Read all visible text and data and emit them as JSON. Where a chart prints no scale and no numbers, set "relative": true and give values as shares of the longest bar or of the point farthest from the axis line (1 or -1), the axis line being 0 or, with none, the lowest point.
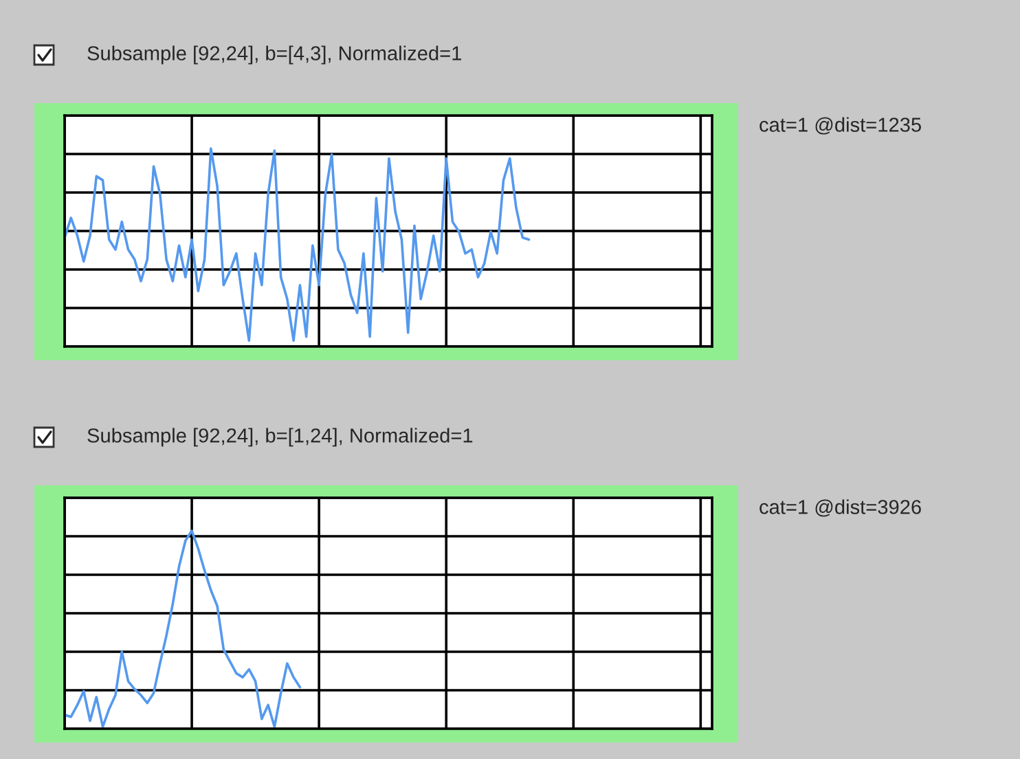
{
  "chart_data": [
    {
      "type": "line",
      "title": "Subsample [92,24], b=[4,3], Normalized=1",
      "annotations": [
        "cat=1 @dist=1235"
      ],
      "relative": true,
      "grid": true,
      "marker": "none",
      "line_style": "solid",
      "categories": [
        null,
        null,
        null,
        null,
        null,
        null,
        null,
        null,
        null,
        null,
        null,
        null,
        null,
        null,
        null,
        null,
        null,
        null,
        null,
        null,
        null,
        null,
        null,
        null,
        null,
        null,
        null,
        null,
        null,
        null,
        null,
        null,
        null,
        null,
        null,
        null,
        null,
        null,
        null,
        null,
        null,
        null,
        null,
        null,
        null,
        null,
        null,
        null,
        null,
        null,
        null,
        null,
        null,
        null,
        null,
        null,
        null,
        null,
        null,
        null,
        null,
        null,
        null,
        null,
        null,
        null,
        null,
        null,
        null,
        null,
        null,
        null,
        null,
        null,
        null,
        null,
        null,
        null,
        null,
        null,
        null,
        null,
        null,
        null,
        null,
        null,
        null,
        null,
        null,
        null,
        null,
        null,
        null,
        null,
        null,
        null,
        null,
        null,
        null,
        null,
        null
      ],
      "series": [
        {
          "color": "#5599ee",
          "values": [
            0.55,
            0.65,
            0.56,
            0.43,
            0.56,
            0.86,
            0.84,
            0.54,
            0.49,
            0.63,
            0.49,
            0.44,
            0.33,
            0.44,
            0.91,
            0.77,
            0.44,
            0.33,
            0.51,
            0.35,
            0.54,
            0.28,
            0.44,
            1.0,
            0.81,
            0.31,
            0.38,
            0.47,
            0.24,
            0.03,
            0.47,
            0.31,
            0.77,
            0.99,
            0.35,
            0.24,
            0.03,
            0.31,
            0.05,
            0.51,
            0.31,
            0.77,
            0.97,
            0.49,
            0.42,
            0.26,
            0.17,
            0.47,
            0.05,
            0.75,
            0.38,
            0.95,
            0.68,
            0.54,
            0.07,
            0.61,
            0.24,
            0.38,
            0.56,
            0.38,
            0.95,
            0.63,
            0.58,
            0.47,
            0.49,
            0.35,
            0.42,
            0.58,
            0.47,
            0.84,
            0.95,
            0.7,
            0.55,
            0.54,
            null,
            null,
            null,
            null,
            null,
            null,
            null,
            null,
            null,
            null,
            null,
            null,
            null,
            null,
            null,
            null,
            null,
            null,
            null,
            null,
            null,
            null,
            null,
            null,
            null,
            null,
            null
          ]
        }
      ]
    },
    {
      "type": "line",
      "title": "Subsample [92,24], b=[1,24], Normalized=1",
      "annotations": [
        "cat=1 @dist=3926"
      ],
      "relative": true,
      "grid": true,
      "marker": "none",
      "line_style": "solid",
      "categories": [
        null,
        null,
        null,
        null,
        null,
        null,
        null,
        null,
        null,
        null,
        null,
        null,
        null,
        null,
        null,
        null,
        null,
        null,
        null,
        null,
        null,
        null,
        null,
        null,
        null,
        null,
        null,
        null,
        null,
        null,
        null,
        null,
        null,
        null,
        null,
        null,
        null,
        null,
        null,
        null,
        null,
        null,
        null,
        null,
        null,
        null,
        null,
        null,
        null,
        null,
        null,
        null,
        null,
        null,
        null,
        null,
        null,
        null,
        null,
        null,
        null,
        null,
        null,
        null,
        null,
        null,
        null,
        null,
        null,
        null,
        null,
        null,
        null,
        null,
        null,
        null,
        null,
        null,
        null,
        null,
        null,
        null,
        null,
        null,
        null,
        null,
        null,
        null,
        null,
        null,
        null,
        null,
        null,
        null,
        null,
        null,
        null,
        null,
        null,
        null,
        null
      ],
      "series": [
        {
          "color": "#5599ee",
          "values": [
            0.07,
            0.06,
            0.12,
            0.19,
            0.04,
            0.16,
            0.01,
            0.1,
            0.17,
            0.39,
            0.24,
            0.2,
            0.17,
            0.13,
            0.18,
            0.33,
            0.47,
            0.63,
            0.82,
            0.95,
            1.0,
            0.91,
            0.8,
            0.7,
            0.62,
            0.4,
            0.34,
            0.28,
            0.26,
            0.3,
            0.24,
            0.05,
            0.12,
            0.01,
            0.18,
            0.33,
            0.26,
            0.21,
            null,
            null,
            null,
            null,
            null,
            null,
            null,
            null,
            null,
            null,
            null,
            null,
            null,
            null,
            null,
            null,
            null,
            null,
            null,
            null,
            null,
            null,
            null,
            null,
            null,
            null,
            null,
            null,
            null,
            null,
            null,
            null,
            null,
            null,
            null,
            null,
            null,
            null,
            null,
            null,
            null,
            null,
            null,
            null,
            null,
            null,
            null,
            null,
            null,
            null,
            null,
            null,
            null,
            null,
            null,
            null,
            null,
            null,
            null,
            null,
            null,
            null,
            null
          ]
        }
      ]
    }
  ]
}
